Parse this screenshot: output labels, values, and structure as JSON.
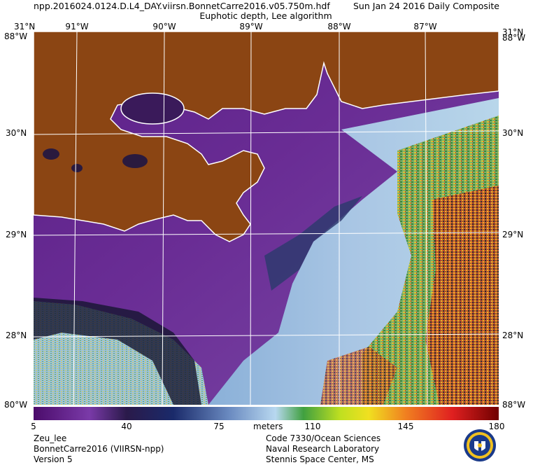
{
  "header": {
    "filename": "npp.2016024.0124.D.L4_DAY.viirsn.BonnetCarre2016.v05.750m.hdf",
    "date": "Sun Jan 24 2016 Daily Composite",
    "product": "Euphotic depth, Lee algorithm"
  },
  "map": {
    "lon_labels": [
      "91°W",
      "90°W",
      "89°W",
      "88°W",
      "87°W"
    ],
    "lat_labels": [
      "31°N",
      "30°N",
      "29°N",
      "28°N"
    ],
    "corner_top": "31°N",
    "corner_bottom": "88°W",
    "corner_bottom_left": "80°W",
    "corner_top_left": "88°W",
    "colors": {
      "land": "#8b4513",
      "coast": "#ffffff",
      "gridline": "#ffffff"
    }
  },
  "colorbar": {
    "ticks": [
      "5",
      "40",
      "75",
      "110",
      "145",
      "180"
    ],
    "units": "meters"
  },
  "footer": {
    "left": [
      "Zeu_lee",
      "BonnetCarre2016 (VIIRSN-npp)",
      "Version 5"
    ],
    "right": [
      "Code 7330/Ocean Sciences",
      "Naval Research Laboratory",
      "Stennis Space Center, MS"
    ]
  },
  "icons": {
    "seal": "nrl-seal-icon"
  }
}
